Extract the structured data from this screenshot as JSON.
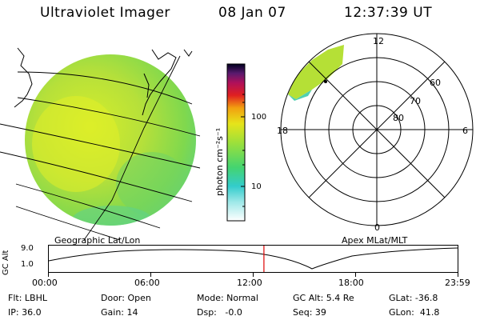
{
  "header": {
    "instrument": "Ultraviolet Imager",
    "date": "08 Jan 07",
    "time": "12:37:39 UT"
  },
  "colorbar": {
    "unit_label": "photon cm⁻²s⁻¹",
    "ticks": [
      "100",
      "10"
    ]
  },
  "left_panel": {
    "caption": "Geographic Lat/Lon"
  },
  "right_panel": {
    "caption": "Apex MLat/MLT",
    "mlt_labels": {
      "top": "12",
      "left": "18",
      "right": "6",
      "bottom": "0"
    },
    "lat_labels": [
      "60",
      "70",
      "80"
    ]
  },
  "timeline": {
    "ylabel": "GC Alt",
    "yticks": [
      "9.0",
      "1.0"
    ],
    "xticks": [
      "00:00",
      "06:00",
      "12:00",
      "18:00",
      "23:59"
    ],
    "current_time_fraction": 0.5262
  },
  "footer": {
    "row1": [
      {
        "key": "flt",
        "text": "Flt: LBHL"
      },
      {
        "key": "door",
        "text": "Door: Open"
      },
      {
        "key": "mode",
        "text": "Mode: Normal"
      },
      {
        "key": "gcalt",
        "text": "GC Alt: 5.4 Re"
      },
      {
        "key": "glat",
        "text": "GLat: -36.8"
      }
    ],
    "row2": [
      {
        "key": "ip",
        "text": "IP: 36.0"
      },
      {
        "key": "gain",
        "text": "Gain: 14"
      },
      {
        "key": "dsp",
        "text": "Dsp:   -0.0"
      },
      {
        "key": "seq",
        "text": "Seq: 39"
      },
      {
        "key": "glon",
        "text": "GLon:  41.8"
      }
    ]
  }
}
